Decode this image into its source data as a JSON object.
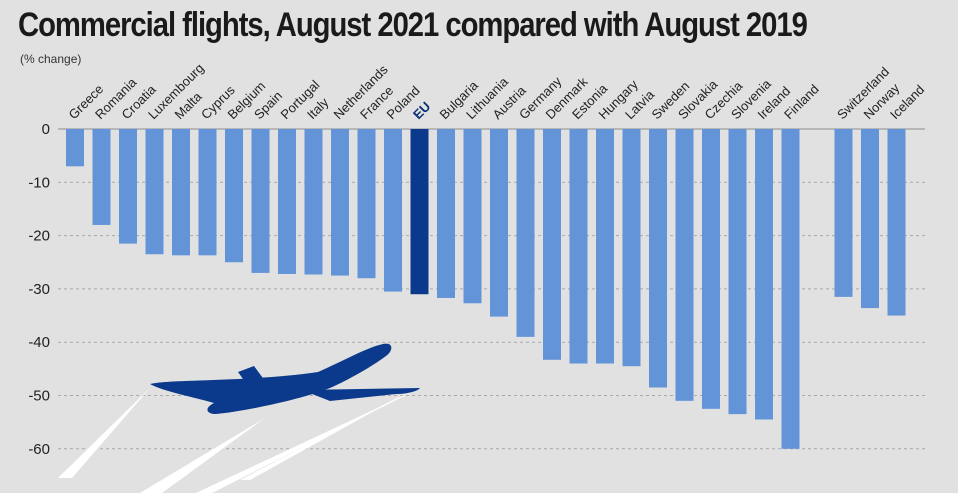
{
  "title": "Commercial flights, August 2021 compared with August 2019",
  "subtitle": "(% change)",
  "colors": {
    "bar": "#6394d8",
    "highlight": "#0b3a8c",
    "plane": "#0b3a8c",
    "background": "#e1e1e1",
    "grid": "#a9a9a9"
  },
  "chart_data": {
    "type": "bar",
    "title": "Commercial flights, August 2021 compared with August 2019",
    "subtitle": "(% change)",
    "xlabel": "",
    "ylabel": "",
    "ylim": [
      -62,
      0
    ],
    "yticks": [
      0,
      -10,
      -20,
      -30,
      -40,
      -50,
      -60
    ],
    "grid": "dashed horizontal",
    "highlight_category": "EU",
    "categories": [
      "Greece",
      "Romania",
      "Croatia",
      "Luxembourg",
      "Malta",
      "Cyprus",
      "Belgium",
      "Spain",
      "Portugal",
      "Italy",
      "Netherlands",
      "France",
      "Poland",
      "EU",
      "Bulgaria",
      "Lithuania",
      "Austria",
      "Germany",
      "Denmark",
      "Estonia",
      "Hungary",
      "Latvia",
      "Sweden",
      "Slovakia",
      "Czechia",
      "Slovenia",
      "Ireland",
      "Finland",
      "Switzerland",
      "Norway",
      "Iceland"
    ],
    "values": [
      -7,
      -18,
      -21.5,
      -23.5,
      -23.7,
      -23.7,
      -25,
      -27,
      -27.2,
      -27.3,
      -27.5,
      -28,
      -30.5,
      -31,
      -31.7,
      -32.7,
      -35.2,
      -39,
      -43.3,
      -44,
      -44,
      -44.5,
      -48.5,
      -51,
      -52.5,
      -53.5,
      -54.5,
      -60,
      -31.5,
      -33.6,
      -35
    ]
  }
}
